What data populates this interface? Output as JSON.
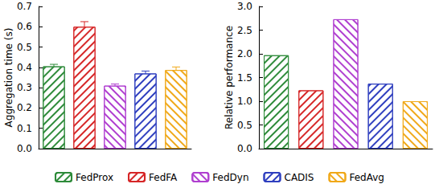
{
  "chart_data": [
    {
      "type": "bar",
      "y_label": "Aggregation time (s)",
      "ylim": [
        0,
        0.7
      ],
      "yticks": [
        {
          "value": 0,
          "label": "0.0"
        },
        0.1,
        0.2,
        0.3,
        0.4,
        0.5,
        0.6,
        0.7
      ],
      "tick_labels": "y",
      "legend": "bottom",
      "series": [
        {
          "name": "FedProx",
          "color": "#2e8b3a",
          "values": [
            0.405
          ],
          "errors": [
            0.01
          ]
        },
        {
          "name": "FedFA",
          "color": "#d62728",
          "values": [
            0.6
          ],
          "errors": [
            0.025
          ]
        },
        {
          "name": "FedDyn",
          "color": "#b03fd0",
          "values": [
            0.31
          ],
          "errors": [
            0.008
          ]
        },
        {
          "name": "CADIS",
          "color": "#2f3fbf",
          "values": [
            0.37
          ],
          "errors": [
            0.012
          ]
        },
        {
          "name": "FedAvg",
          "color": "#f0a818",
          "values": [
            0.387
          ],
          "errors": [
            0.015
          ]
        }
      ]
    },
    {
      "type": "bar",
      "y_label": "Relative performance",
      "ylim": [
        0,
        3
      ],
      "yticks": [
        {
          "value": 0,
          "label": "0.0"
        },
        0.5,
        {
          "value": 1,
          "label": "1.0"
        },
        1.5,
        {
          "value": 2,
          "label": "2.0"
        },
        2.5,
        {
          "value": 3,
          "label": "3.0"
        }
      ],
      "tick_labels": "y",
      "series": [
        {
          "name": "FedProx",
          "color": "#2e8b3a",
          "values": [
            1.97
          ]
        },
        {
          "name": "FedFA",
          "color": "#d62728",
          "values": [
            1.23
          ]
        },
        {
          "name": "FedDyn",
          "color": "#b03fd0",
          "values": [
            2.73
          ]
        },
        {
          "name": "CADIS",
          "color": "#2f3fbf",
          "values": [
            1.37
          ]
        },
        {
          "name": "FedAvg",
          "color": "#f0a818",
          "values": [
            1.0
          ]
        }
      ]
    }
  ]
}
